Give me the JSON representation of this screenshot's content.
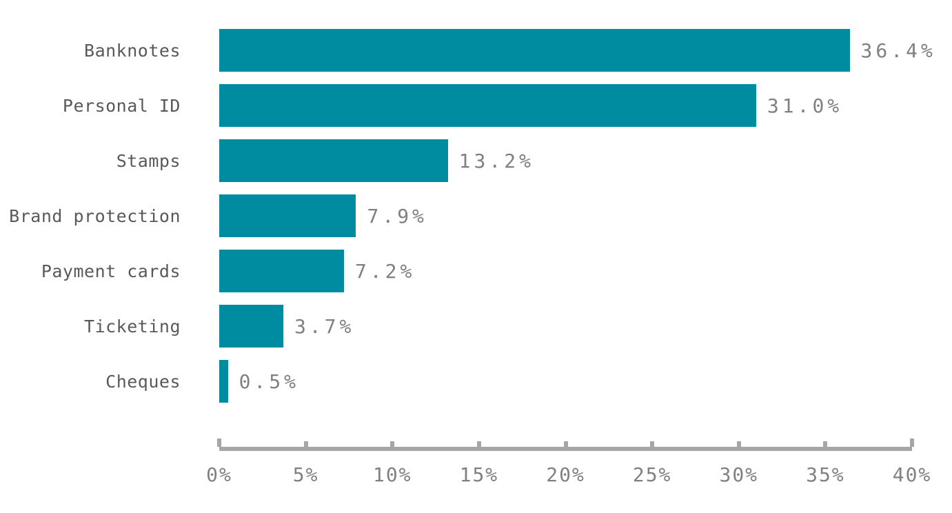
{
  "chart_data": {
    "type": "bar",
    "orientation": "horizontal",
    "title": "",
    "xlabel": "",
    "ylabel": "",
    "categories": [
      "Banknotes",
      "Personal ID",
      "Stamps",
      "Brand protection",
      "Payment cards",
      "Ticketing",
      "Cheques"
    ],
    "values": [
      36.4,
      31.0,
      13.2,
      7.9,
      7.2,
      3.7,
      0.5
    ],
    "value_labels": [
      "36.4%",
      "31.0%",
      "13.2%",
      "7.9%",
      "7.2%",
      "3.7%",
      "0.5%"
    ],
    "x_ticks": [
      "0%",
      "5%",
      "10%",
      "15%",
      "20%",
      "25%",
      "30%",
      "35%",
      "40%"
    ],
    "xlim": [
      0,
      40
    ],
    "grid": false,
    "legend": "none",
    "colors": {
      "bar": "#008CA0",
      "category_label": "#595959",
      "value_label": "#808080",
      "axis": "#a6a6a6",
      "background": "#ffffff"
    }
  }
}
